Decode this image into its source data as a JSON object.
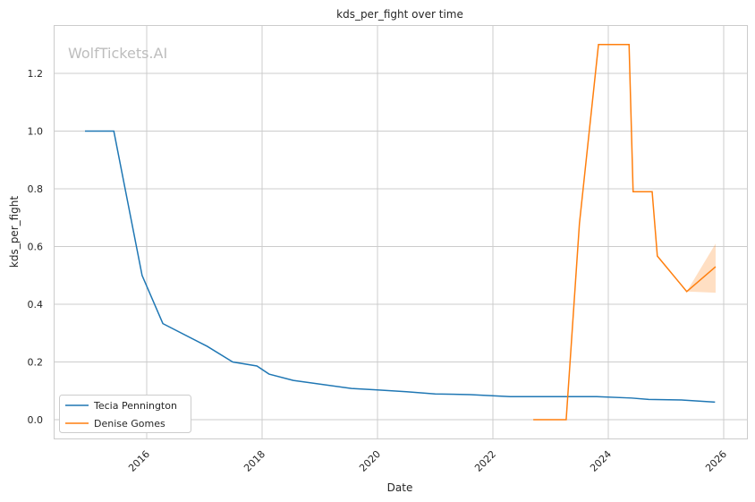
{
  "chart_data": {
    "type": "line",
    "title": "kds_per_fight over time",
    "xlabel": "Date",
    "ylabel": "kds_per_fight",
    "xlim": [
      2014.6,
      2026.4
    ],
    "ylim": [
      -0.065,
      1.37
    ],
    "xticks": [
      2016,
      2018,
      2020,
      2022,
      2024,
      2026
    ],
    "xtick_labels": [
      "2016",
      "2018",
      "2020",
      "2022",
      "2024",
      "2026"
    ],
    "yticks": [
      0.0,
      0.2,
      0.4,
      0.6,
      0.8,
      1.0,
      1.2
    ],
    "ytick_labels": [
      "0.0",
      "0.2",
      "0.4",
      "0.6",
      "0.8",
      "1.0",
      "1.2"
    ],
    "grid": true,
    "legend_position": "lower-left",
    "watermark": "WolfTickets.AI",
    "series": [
      {
        "name": "Tecia Pennington",
        "color": "#1f77b4",
        "x": [
          2014.93,
          2015.43,
          2015.92,
          2016.28,
          2017.05,
          2017.49,
          2017.91,
          2018.12,
          2018.54,
          2019.55,
          2020.0,
          2020.5,
          2021.0,
          2021.6,
          2022.3,
          2023.0,
          2023.8,
          2024.4,
          2024.7,
          2025.3,
          2025.85
        ],
        "y": [
          1.0,
          1.0,
          0.5,
          0.333,
          0.254,
          0.2,
          0.186,
          0.158,
          0.136,
          0.108,
          0.103,
          0.097,
          0.089,
          0.087,
          0.08,
          0.08,
          0.08,
          0.075,
          0.07,
          0.068,
          0.061
        ]
      },
      {
        "name": "Denise Gomes",
        "color": "#ff7f0e",
        "x": [
          2022.7,
          2023.27,
          2023.5,
          2023.83,
          2024.36,
          2024.43,
          2024.76,
          2024.85,
          2025.36,
          2025.86
        ],
        "y": [
          0.0,
          0.0,
          0.68,
          1.3,
          1.3,
          0.79,
          0.79,
          0.567,
          0.444,
          0.53
        ],
        "ci": {
          "x": [
            2025.36,
            2025.86
          ],
          "lower": [
            0.444,
            0.44
          ],
          "upper": [
            0.444,
            0.61
          ]
        }
      }
    ]
  }
}
